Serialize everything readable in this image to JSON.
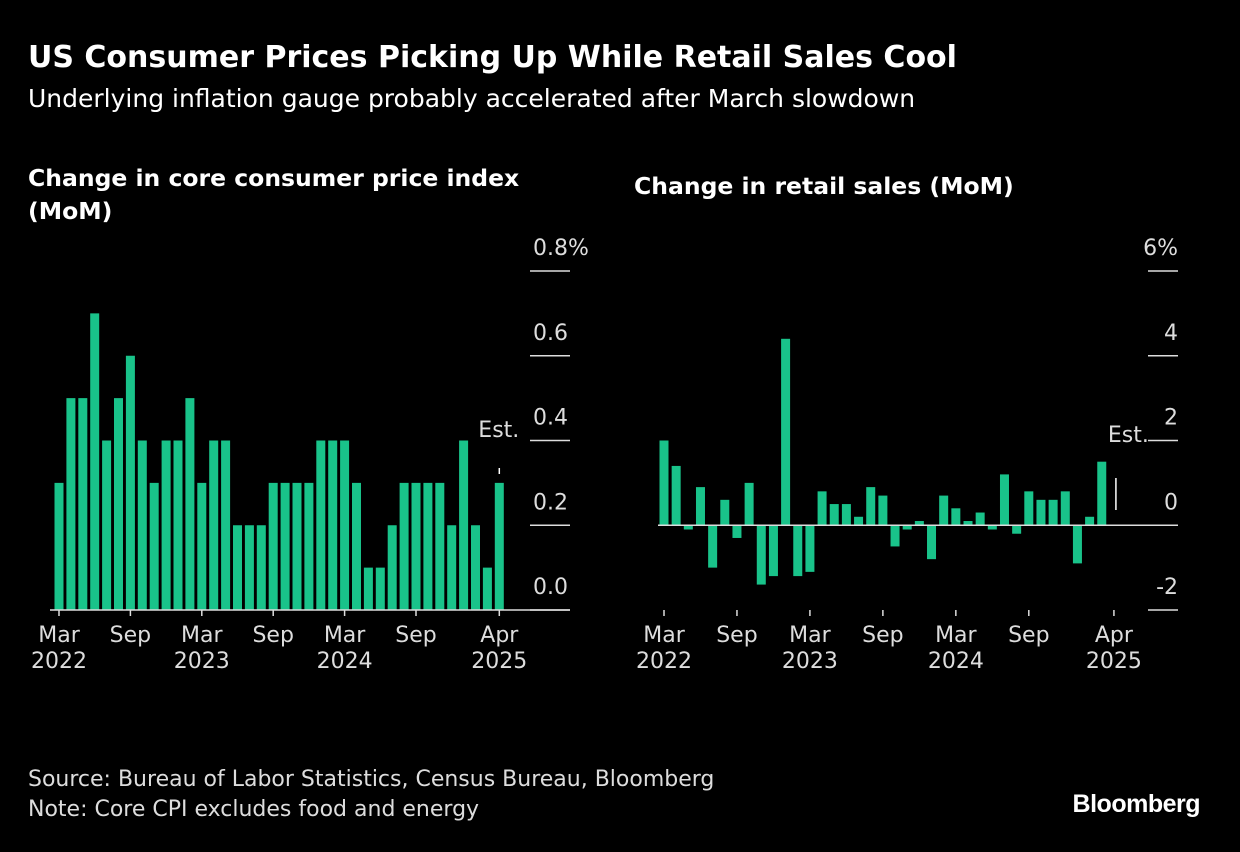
{
  "title": "US Consumer Prices Picking Up While Retail Sales Cool",
  "subtitle": "Underlying inflation gauge probably accelerated after March slowdown",
  "chart_data": [
    {
      "type": "bar",
      "title": "Change in core consumer price index (MoM)",
      "color": "#19c38a",
      "categories": [
        "Mar 2022",
        null,
        null,
        null,
        null,
        null,
        "Sep",
        null,
        null,
        null,
        null,
        null,
        "Mar 2023",
        null,
        null,
        null,
        null,
        null,
        "Sep",
        null,
        null,
        null,
        null,
        null,
        "Mar 2024",
        null,
        null,
        null,
        null,
        null,
        "Sep",
        null,
        null,
        null,
        null,
        null,
        null,
        "Apr 2025"
      ],
      "values": [
        0.3,
        0.5,
        0.5,
        0.7,
        0.4,
        0.5,
        0.6,
        0.4,
        0.3,
        0.4,
        0.4,
        0.5,
        0.3,
        0.4,
        0.4,
        0.2,
        0.2,
        0.2,
        0.3,
        0.3,
        0.3,
        0.3,
        0.4,
        0.4,
        0.4,
        0.3,
        0.1,
        0.1,
        0.2,
        0.3,
        0.3,
        0.3,
        0.3,
        0.2,
        0.4,
        0.2,
        0.1,
        0.3
      ],
      "ylim": [
        0,
        0.8
      ],
      "yticks": [
        {
          "value": 0,
          "label": "0.0"
        },
        0.2,
        0.4,
        0.6,
        {
          "value": 0.8,
          "label": "0.8%"
        }
      ],
      "annotation": "Est."
    },
    {
      "type": "bar",
      "title": "Change in retail sales (MoM)",
      "color": "#19c38a",
      "categories": [
        "Mar 2022",
        null,
        null,
        null,
        null,
        null,
        "Sep",
        null,
        null,
        null,
        null,
        null,
        "Mar 2023",
        null,
        null,
        null,
        null,
        null,
        "Sep",
        null,
        null,
        null,
        null,
        null,
        "Mar 2024",
        null,
        null,
        null,
        null,
        null,
        "Sep",
        null,
        null,
        null,
        null,
        null,
        null,
        "Apr 2025"
      ],
      "values": [
        2.0,
        1.4,
        -0.1,
        0.9,
        -1.0,
        0.6,
        -0.3,
        1.0,
        -1.4,
        -1.2,
        4.4,
        -1.2,
        -1.1,
        0.8,
        0.5,
        0.5,
        0.2,
        0.9,
        0.7,
        -0.5,
        -0.1,
        0.1,
        -0.8,
        0.7,
        0.4,
        0.1,
        0.3,
        -0.1,
        1.2,
        -0.2,
        0.8,
        0.6,
        0.6,
        0.8,
        -0.9,
        0.2,
        1.5,
        0.0
      ],
      "ylim": [
        -2,
        6
      ],
      "yticks": [
        -2,
        {
          "value": 0,
          "label": "0"
        },
        2,
        4,
        {
          "value": 6,
          "label": "6%"
        }
      ],
      "annotation": "Est."
    }
  ],
  "source": "Source: Bureau of Labor Statistics, Census Bureau, Bloomberg",
  "note": "Note: Core CPI excludes food and energy",
  "logo": "Bloomberg"
}
